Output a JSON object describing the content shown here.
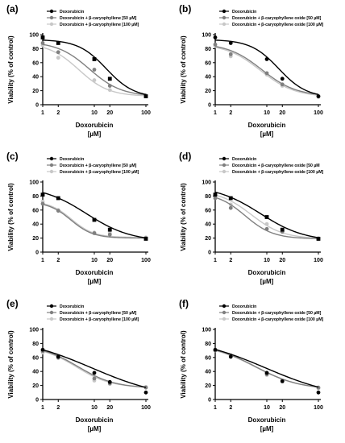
{
  "figure": {
    "background": "#ffffff"
  },
  "series_styles": [
    {
      "color": "#000000",
      "marker": "square-or-circle"
    },
    {
      "color": "#808080",
      "marker": "circle"
    },
    {
      "color": "#c8c8c8",
      "marker": "circle"
    }
  ],
  "chart_data": [
    {
      "panel_label": "(a)",
      "type": "line",
      "xscale": "log",
      "xlabel": "Doxorubicin",
      "xunit": "[µM]",
      "ylabel": "Viability (% of control)",
      "ylim": [
        0,
        100
      ],
      "yticks": [
        0,
        20,
        40,
        60,
        80,
        100
      ],
      "xticks": [
        1,
        2,
        10,
        20,
        100
      ],
      "xlim": [
        1,
        100
      ],
      "grid": false,
      "legend": "top",
      "series": [
        {
          "name": "Doxorubicin",
          "marker": "square",
          "x": [
            1,
            2,
            10,
            20,
            100
          ],
          "y": [
            96,
            88,
            65,
            37,
            12
          ],
          "curve": {
            "top": 93,
            "bottom": 10,
            "ec50": 17,
            "hill": 1.6
          }
        },
        {
          "name": "Doxorubicin + β-caryophyllene [50 µM]",
          "marker": "circle",
          "x": [
            1,
            2,
            10,
            20,
            100
          ],
          "y": [
            88,
            75,
            50,
            27,
            13
          ],
          "curve": {
            "top": 90,
            "bottom": 12,
            "ec50": 8,
            "hill": 1.4
          }
        },
        {
          "name": "Doxorubicin + β-caryophyllene [100 µM]",
          "marker": "circle",
          "x": [
            1,
            2,
            10,
            20,
            100
          ],
          "y": [
            85,
            67,
            35,
            21,
            12
          ],
          "curve": {
            "top": 88,
            "bottom": 12,
            "ec50": 5,
            "hill": 1.5
          }
        }
      ]
    },
    {
      "panel_label": "(b)",
      "type": "line",
      "xscale": "log",
      "xlabel": "Doxorubicin",
      "xunit": "[µM]",
      "ylabel": "Viability (% of control)",
      "ylim": [
        0,
        100
      ],
      "yticks": [
        0,
        20,
        40,
        60,
        80,
        100
      ],
      "xticks": [
        1,
        2,
        10,
        20,
        100
      ],
      "xlim": [
        1,
        100
      ],
      "grid": false,
      "legend": "top",
      "series": [
        {
          "name": "Doxorubicin",
          "marker": "circle",
          "x": [
            1,
            2,
            10,
            20,
            100
          ],
          "y": [
            96,
            88,
            65,
            37,
            12
          ],
          "curve": {
            "top": 93,
            "bottom": 10,
            "ec50": 17,
            "hill": 1.6
          }
        },
        {
          "name": "Doxorubicin + β-caryophyllene oxide [50 µM]",
          "marker": "circle",
          "x": [
            1,
            2,
            10,
            20,
            100
          ],
          "y": [
            86,
            72,
            45,
            29,
            12
          ],
          "curve": {
            "top": 88,
            "bottom": 12,
            "ec50": 8,
            "hill": 1.3
          }
        },
        {
          "name": "Doxorubicin + β-caryophyllene oxide [100 µM]",
          "marker": "circle",
          "x": [
            1,
            2,
            10,
            20,
            100
          ],
          "y": [
            84,
            69,
            43,
            27,
            11
          ],
          "curve": {
            "top": 87,
            "bottom": 11,
            "ec50": 7.5,
            "hill": 1.3
          }
        }
      ]
    },
    {
      "panel_label": "(c)",
      "type": "line",
      "xscale": "log",
      "xlabel": "Doxorubicin",
      "xunit": "[µM]",
      "ylabel": "Viability (% of control)",
      "ylim": [
        0,
        100
      ],
      "yticks": [
        0,
        20,
        40,
        60,
        80,
        100
      ],
      "xticks": [
        1,
        2,
        10,
        20,
        100
      ],
      "xlim": [
        1,
        100
      ],
      "grid": false,
      "legend": "top",
      "series": [
        {
          "name": "Doxorubicin",
          "marker": "square",
          "x": [
            1,
            2,
            10,
            20,
            100
          ],
          "y": [
            82,
            77,
            46,
            32,
            19
          ],
          "curve": {
            "top": 95,
            "bottom": 15,
            "ec50": 7,
            "hill": 1.0
          }
        },
        {
          "name": "Doxorubicin + β-caryophyllene [50 µM]",
          "marker": "circle",
          "x": [
            1,
            2,
            10,
            20,
            100
          ],
          "y": [
            69,
            59,
            27,
            25,
            20
          ],
          "curve": {
            "top": 72,
            "bottom": 20,
            "ec50": 3.5,
            "hill": 2.0
          }
        },
        {
          "name": "Doxorubicin + β-caryophyllene [100 µM]",
          "marker": "circle",
          "x": [
            1,
            2,
            10,
            20,
            100
          ],
          "y": [
            72,
            60,
            28,
            27,
            21
          ],
          "curve": {
            "top": 73,
            "bottom": 21,
            "ec50": 3.6,
            "hill": 2.0
          }
        }
      ]
    },
    {
      "panel_label": "(d)",
      "type": "line",
      "xscale": "log",
      "xlabel": "Doxorubicin",
      "xunit": "[µM]",
      "ylabel": "Viability (% of control)",
      "ylim": [
        0,
        100
      ],
      "yticks": [
        0,
        20,
        40,
        60,
        80,
        100
      ],
      "xticks": [
        1,
        2,
        10,
        20,
        100
      ],
      "xlim": [
        1,
        100
      ],
      "grid": false,
      "legend": "top",
      "series": [
        {
          "name": "Doxorubicin",
          "marker": "square",
          "x": [
            1,
            2,
            10,
            20,
            100
          ],
          "y": [
            82,
            77,
            50,
            32,
            19
          ],
          "curve": {
            "top": 95,
            "bottom": 15,
            "ec50": 7.5,
            "hill": 1.0
          }
        },
        {
          "name": "Doxorubicin + β-caryophyllene oxide [50 µM",
          "marker": "circle",
          "x": [
            1,
            2,
            10,
            20,
            100
          ],
          "y": [
            77,
            63,
            33,
            29,
            19
          ],
          "curve": {
            "top": 85,
            "bottom": 19,
            "ec50": 3.8,
            "hill": 1.6
          }
        },
        {
          "name": "Doxorubicin + β-caryophyllene oxide [100 µM]",
          "marker": "circle",
          "x": [
            1,
            2,
            10,
            20,
            100
          ],
          "y": [
            80,
            68,
            40,
            30,
            20
          ],
          "curve": {
            "top": 88,
            "bottom": 19,
            "ec50": 5,
            "hill": 1.4
          }
        }
      ]
    },
    {
      "panel_label": "(e)",
      "type": "line",
      "xscale": "log",
      "xlabel": "Doxorubicin",
      "xunit": "[µM]",
      "ylabel": "Viability (% of control)",
      "ylim": [
        0,
        100
      ],
      "yticks": [
        0,
        20,
        40,
        60,
        80,
        100
      ],
      "xticks": [
        1,
        2,
        10,
        20,
        100
      ],
      "xlim": [
        1,
        100
      ],
      "grid": false,
      "legend": "top",
      "series": [
        {
          "name": "Doxorubicin",
          "marker": "circle",
          "x": [
            1,
            2,
            10,
            20,
            100
          ],
          "y": [
            71,
            61,
            38,
            25,
            10
          ],
          "curve": {
            "top": 90,
            "bottom": 0,
            "ec50": 9,
            "hill": 0.6
          }
        },
        {
          "name": "Doxorubicin + β-caryophyllene [50 µM]",
          "marker": "circle",
          "x": [
            1,
            2,
            10,
            20,
            100
          ],
          "y": [
            69,
            60,
            30,
            23,
            17
          ],
          "curve": {
            "top": 78,
            "bottom": 16,
            "ec50": 4.8,
            "hill": 1.2
          }
        },
        {
          "name": "Doxorubicin + β-caryophyllene [100 µM]",
          "marker": "circle",
          "x": [
            1,
            2,
            10,
            20,
            100
          ],
          "y": [
            67,
            59,
            27,
            22,
            18
          ],
          "curve": {
            "top": 76,
            "bottom": 17,
            "ec50": 4.5,
            "hill": 1.3
          }
        }
      ]
    },
    {
      "panel_label": "(f)",
      "type": "line",
      "xscale": "log",
      "xlabel": "Doxorubicin",
      "xunit": "[µM]",
      "ylabel": "Viability (% of control)",
      "ylim": [
        0,
        100
      ],
      "yticks": [
        0,
        20,
        40,
        60,
        80,
        100
      ],
      "xticks": [
        1,
        2,
        10,
        20,
        100
      ],
      "xlim": [
        1,
        100
      ],
      "grid": false,
      "legend": "top",
      "series": [
        {
          "name": "Doxorubicin",
          "marker": "circle",
          "x": [
            1,
            2,
            10,
            20,
            100
          ],
          "y": [
            71,
            61,
            38,
            26,
            10
          ],
          "curve": {
            "top": 90,
            "bottom": 0,
            "ec50": 9.5,
            "hill": 0.6
          }
        },
        {
          "name": "Doxorubicin + β-caryophyllene oxide [50 µM]",
          "marker": "circle",
          "x": [
            1,
            2,
            10,
            20,
            100
          ],
          "y": [
            70,
            63,
            36,
            27,
            17
          ],
          "curve": {
            "top": 80,
            "bottom": 14,
            "ec50": 6,
            "hill": 1.0
          }
        },
        {
          "name": "Doxorubicin + β-caryophyllene oxide [100 µM]",
          "marker": "circle",
          "x": [
            1,
            2,
            10,
            20,
            100
          ],
          "y": [
            70,
            62,
            35,
            27,
            16
          ],
          "curve": {
            "top": 79,
            "bottom": 14,
            "ec50": 6,
            "hill": 1.0
          }
        }
      ]
    }
  ]
}
